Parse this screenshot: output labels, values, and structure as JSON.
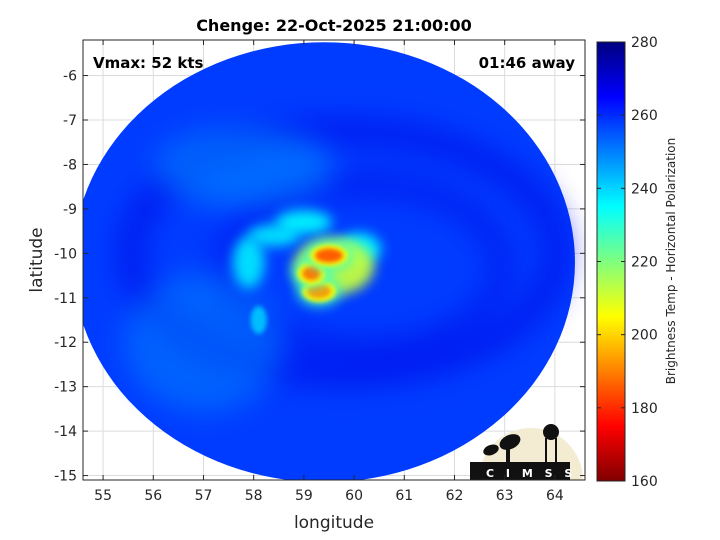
{
  "chart_data": {
    "type": "heatmap",
    "title": "Chenge: 22-Oct-2025 21:00:00",
    "xlabel": "longitude",
    "ylabel": "latitude",
    "xlim": [
      54.6,
      64.6
    ],
    "ylim": [
      -15.1,
      -5.2
    ],
    "xticks": [
      55,
      56,
      57,
      58,
      59,
      60,
      61,
      62,
      63,
      64
    ],
    "yticks": [
      -6,
      -7,
      -8,
      -9,
      -10,
      -11,
      -12,
      -13,
      -14,
      -15
    ],
    "grid": true,
    "annotations": {
      "vmax": "Vmax: 52 kts",
      "distance": "01:46 away"
    },
    "colorbar": {
      "label": "Brightness Temp - Horizontal Polarization",
      "range": [
        160,
        280
      ],
      "ticks": [
        280,
        260,
        240,
        220,
        200,
        180,
        160
      ],
      "colormap": "jet"
    },
    "swath": {
      "center": [
        59.4,
        -10.2
      ],
      "radius_lon": 5.0,
      "radius_lat": 4.95,
      "background_value": 258
    },
    "features": [
      {
        "name": "core-a",
        "lon": 59.5,
        "lat": -10.05,
        "value": 185
      },
      {
        "name": "core-b",
        "lon": 59.15,
        "lat": -10.45,
        "value": 188
      },
      {
        "name": "core-c",
        "lon": 59.3,
        "lat": -10.85,
        "value": 192
      },
      {
        "name": "band-inner",
        "lon": 59.6,
        "lat": -10.3,
        "value": 212
      },
      {
        "name": "band-north",
        "lon": 59.0,
        "lat": -9.3,
        "value": 236
      },
      {
        "name": "band-northwest",
        "lon": 58.4,
        "lat": -9.6,
        "value": 238
      },
      {
        "name": "band-west",
        "lon": 57.9,
        "lat": -10.2,
        "value": 238
      },
      {
        "name": "band-southwest",
        "lon": 58.1,
        "lat": -11.5,
        "value": 242
      },
      {
        "name": "band-east",
        "lon": 60.1,
        "lat": -9.9,
        "value": 236
      }
    ]
  },
  "logo": {
    "text": "C I M S S"
  },
  "colors": {
    "background_field": "#1c4fe0",
    "frame": "#262626"
  }
}
